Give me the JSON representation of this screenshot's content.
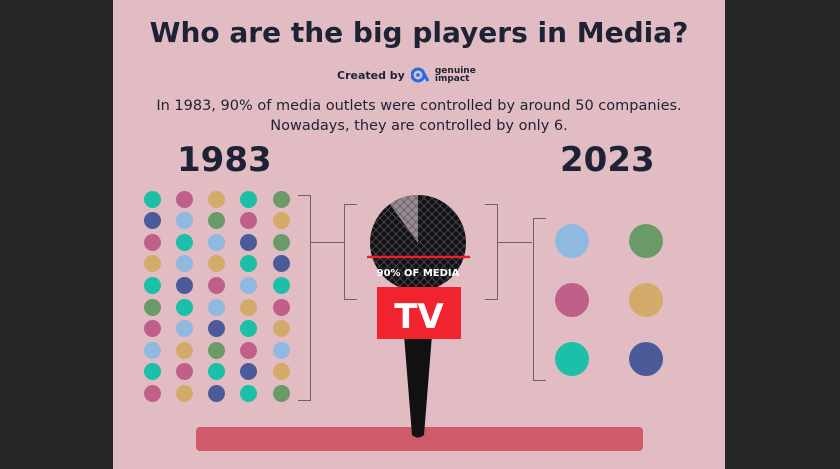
{
  "title": "Who are the big players in Media?",
  "credit": {
    "label": "Created by",
    "brand_line1": "genuine",
    "brand_line2": "impact",
    "brand_color": "#1e6fe8"
  },
  "subtitle": {
    "line1": "In 1983, 90% of media outlets were controlled by around 50 companies.",
    "line2": "Nowadays, they are controlled by only 6."
  },
  "left": {
    "year": "1983",
    "grid": [
      "TPYTG",
      "NBGPY",
      "PTBNG",
      "YBYTN",
      "TNPBT",
      "GTBYP",
      "PBNTY",
      "BYGPB",
      "TPTNY",
      "PYNTG"
    ]
  },
  "right": {
    "year": "2023",
    "grid": [
      "BG",
      "PY",
      "TN"
    ]
  },
  "colors": {
    "T": "#1cbfa8",
    "P": "#c0608a",
    "Y": "#d4aa6a",
    "B": "#8fb9e0",
    "N": "#4b5a98",
    "G": "#6a9a68"
  },
  "mic": {
    "label": "90% OF MEDIA",
    "share_percent": 90,
    "tv_label": "TV",
    "tv_color": "#f0232f"
  }
}
